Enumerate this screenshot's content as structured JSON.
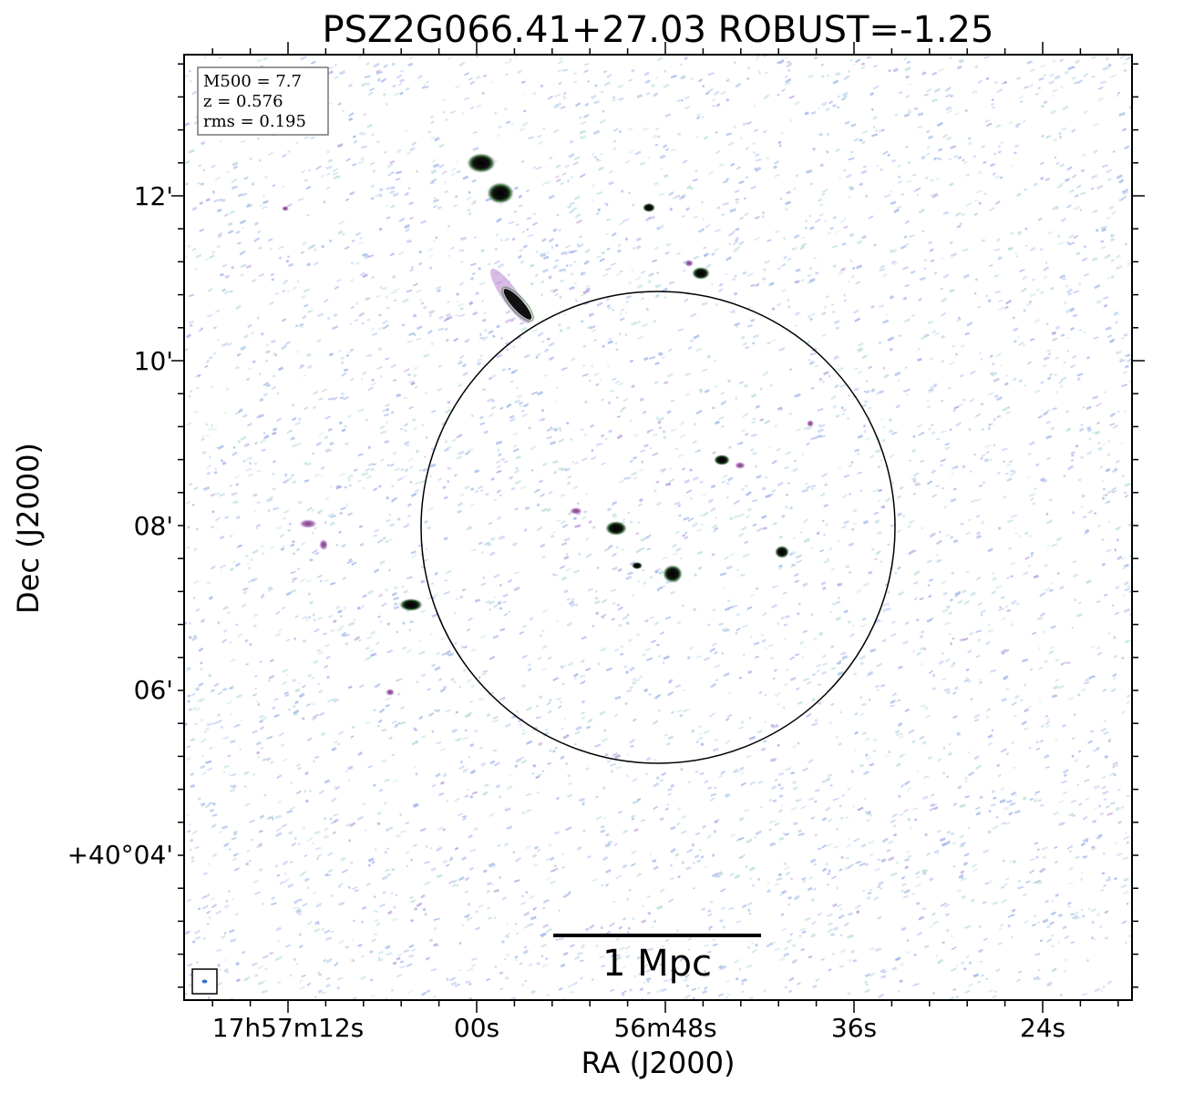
{
  "title": "PSZ2G066.41+27.03 ROBUST=-1.25",
  "axes": {
    "xlabel": "RA (J2000)",
    "ylabel": "Dec (J2000)",
    "x_ticks": [
      "17h57m12s",
      "00s",
      "56m48s",
      "36s",
      "24s"
    ],
    "y_ticks": [
      "12'",
      "10'",
      "08'",
      "06'",
      "+40°04'"
    ]
  },
  "info_box": {
    "mass": "M500 = 7.7",
    "redshift": "z = 0.576",
    "rms": "rms = 0.195"
  },
  "scale_bar": {
    "label": "1 Mpc"
  },
  "colors": {
    "noise_blue": "#9fb4e8",
    "noise_teal": "#b9dcdc",
    "noise_purple": "#b79ad9",
    "source_core": "#000000",
    "source_halo": "#9b6bb5",
    "source_rim": "#3a7a3a"
  }
}
